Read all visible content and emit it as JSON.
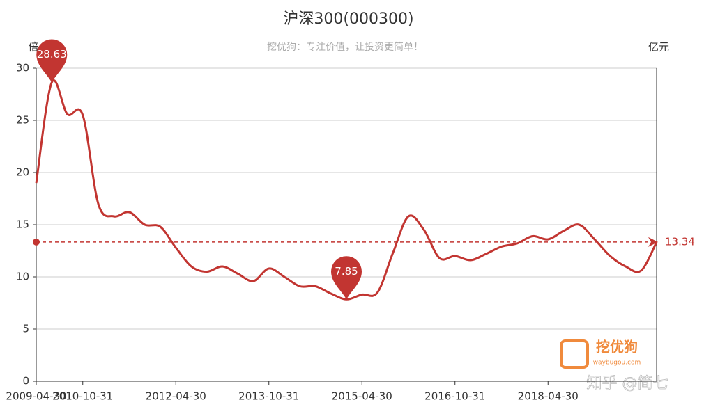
{
  "chart_data": {
    "type": "line",
    "title": "沪深300(000300)",
    "subtitle": "挖优狗：专注价值，让投资更简单！",
    "y_axis_label": "倍",
    "y2_axis_label": "亿元",
    "watermark": "知乎 @简七",
    "logo": {
      "name": "挖优狗",
      "url": "waybugou.com"
    },
    "categories": [
      "2009-04-30",
      null,
      null,
      "2010-10-31",
      null,
      null,
      null,
      null,
      null,
      "2012-04-30",
      null,
      null,
      null,
      null,
      null,
      "2013-10-31",
      null,
      null,
      null,
      null,
      null,
      "2015-04-30",
      null,
      null,
      null,
      null,
      null,
      "2016-10-31",
      null,
      null,
      null,
      null,
      null,
      "2018-04-30",
      null,
      null,
      null,
      null,
      null,
      null,
      null
    ],
    "series": [
      {
        "name": "沪深300",
        "color": "#c23531",
        "values": [
          19,
          28.63,
          25.6,
          25.5,
          17,
          15.8,
          16.2,
          15,
          14.8,
          12.8,
          11,
          10.5,
          11,
          10.3,
          9.6,
          10.8,
          10,
          9.1,
          9.1,
          8.4,
          7.85,
          8.3,
          8.5,
          12.3,
          15.8,
          14.5,
          11.8,
          12,
          11.6,
          12.2,
          12.9,
          13.2,
          13.9,
          13.6,
          14.4,
          15,
          13.6,
          12,
          11,
          10.6,
          13.34
        ]
      }
    ],
    "ylim": [
      0,
      30
    ],
    "yticks": [
      0,
      5,
      10,
      15,
      20,
      25,
      30
    ],
    "grid": true
  }
}
